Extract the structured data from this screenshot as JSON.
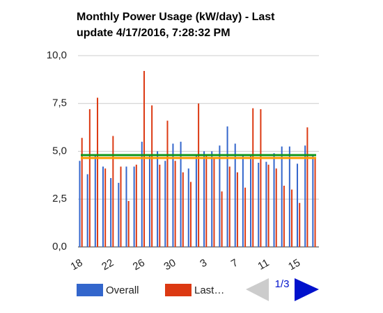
{
  "chart_data": {
    "type": "bar",
    "title": [
      "Monthly Power Usage (kW/day) - Last",
      "update 4/17/2016, 7:28:32 PM"
    ],
    "categories": [
      "18",
      null,
      null,
      null,
      "22",
      null,
      null,
      null,
      "26",
      null,
      null,
      null,
      "30",
      null,
      null,
      null,
      "3",
      null,
      null,
      null,
      "7",
      null,
      null,
      null,
      "11",
      null,
      null,
      null,
      "15",
      null,
      null
    ],
    "series": [
      {
        "name": "Overall",
        "color": "#3366cc",
        "values": [
          4.5,
          3.8,
          4.8,
          4.2,
          3.6,
          3.35,
          4.2,
          4.2,
          5.5,
          4.8,
          5.0,
          4.5,
          5.4,
          5.5,
          4.1,
          4.8,
          5.0,
          5.0,
          5.3,
          6.3,
          5.4,
          4.8,
          4.8,
          4.4,
          4.45,
          4.9,
          5.25,
          5.25,
          4.35,
          5.3,
          4.8
        ]
      },
      {
        "name": "Last…",
        "color": "#dc3912",
        "values": [
          5.7,
          7.2,
          7.8,
          4.1,
          5.8,
          4.2,
          2.4,
          4.3,
          9.2,
          7.4,
          4.3,
          6.6,
          4.5,
          3.9,
          3.4,
          7.5,
          4.8,
          4.6,
          2.9,
          4.2,
          3.9,
          3.1,
          7.25,
          7.2,
          4.3,
          4.1,
          3.2,
          3.0,
          2.3,
          6.25,
          4.6
        ]
      }
    ],
    "lines": [
      {
        "color": "#109618",
        "value": 4.8
      },
      {
        "color": "#ff9900",
        "value": 4.65
      }
    ],
    "ylim": [
      0,
      10
    ],
    "yticks": [
      {
        "value": 0,
        "label": "0,0"
      },
      {
        "value": 2.5,
        "label": "2,5"
      },
      {
        "value": 5,
        "label": "5,0"
      },
      {
        "value": 7.5,
        "label": "7,5"
      },
      {
        "value": 10,
        "label": "10,0"
      }
    ],
    "grid": true,
    "pager": "1/3"
  }
}
